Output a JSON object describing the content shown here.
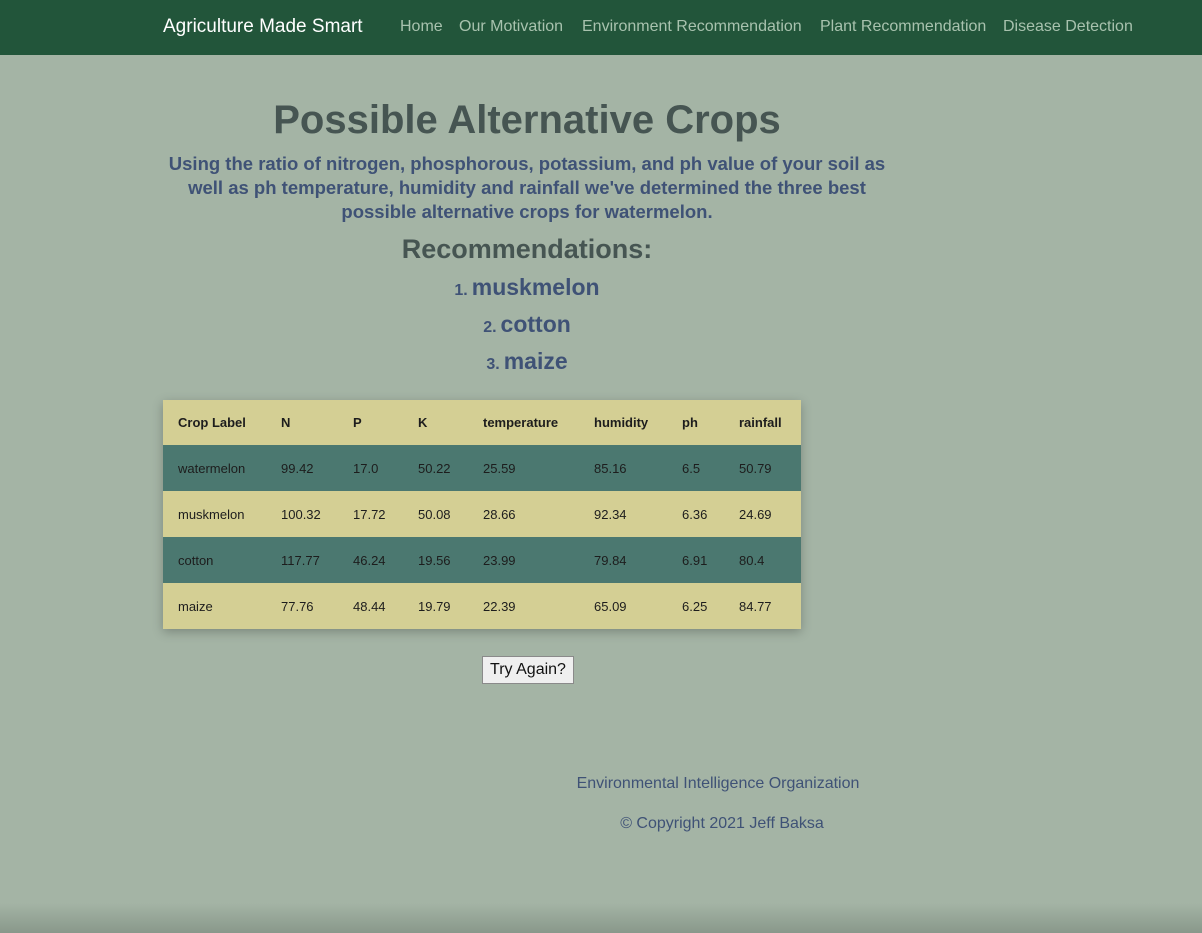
{
  "navbar": {
    "brand": "Agriculture Made Smart",
    "links": [
      "Home",
      "Our Motivation",
      "Environment Recommendation",
      "Plant Recommendation",
      "Disease Detection"
    ]
  },
  "main": {
    "title": "Possible Alternative Crops",
    "description_prefix": "Using the ratio of nitrogen, phosphorous, potassium, and ph value of your soil as well as ph temperature, humidity and rainfall we've determined the three best possible alternative crops for ",
    "target_crop": "watermelon",
    "description_suffix": ".",
    "recommendations_heading": "Recommendations:",
    "recommendations": [
      {
        "number": "1.",
        "name": "muskmelon"
      },
      {
        "number": "2.",
        "name": "cotton"
      },
      {
        "number": "3.",
        "name": "maize"
      }
    ]
  },
  "table": {
    "headers": [
      "Crop Label",
      "N",
      "P",
      "K",
      "temperature",
      "humidity",
      "ph",
      "rainfall"
    ],
    "rows": [
      [
        "watermelon",
        "99.42",
        "17.0",
        "50.22",
        "25.59",
        "85.16",
        "6.5",
        "50.79"
      ],
      [
        "muskmelon",
        "100.32",
        "17.72",
        "50.08",
        "28.66",
        "92.34",
        "6.36",
        "24.69"
      ],
      [
        "cotton",
        "117.77",
        "46.24",
        "19.56",
        "23.99",
        "79.84",
        "6.91",
        "80.4"
      ],
      [
        "maize",
        "77.76",
        "48.44",
        "19.79",
        "22.39",
        "65.09",
        "6.25",
        "84.77"
      ]
    ]
  },
  "try_again_label": "Try Again?",
  "footer": {
    "org": "Environmental Intelligence Organization",
    "copyright": "© Copyright 2021 Jeff Baksa"
  },
  "colors": {
    "navbar": "#22553a",
    "background": "#a4b4a5",
    "table_light": "#d4cf94",
    "table_dark": "#4b7870",
    "accent_text": "#3f5276"
  }
}
